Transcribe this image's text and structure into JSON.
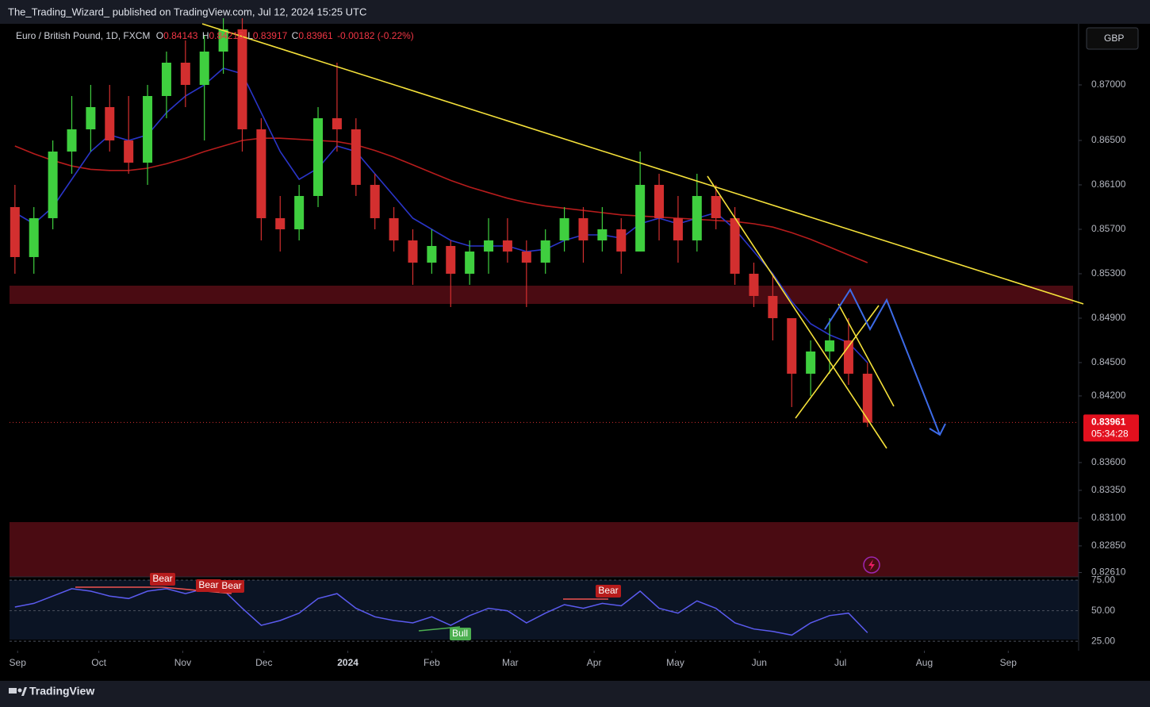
{
  "header": {
    "publisher": "The_Trading_Wizard_ published on TradingView.com, Jul 12, 2024 15:25 UTC"
  },
  "footer": {
    "brand": "TradingView"
  },
  "chart_data": {
    "type": "candlestick",
    "symbol": "Euro / British Pound, 1D, FXCM",
    "currency": "GBP",
    "legend": {
      "open_label": "O",
      "open": 0.84143,
      "high_label": "H",
      "high": 0.84216,
      "low_label": "L",
      "low": 0.83917,
      "close_label": "C",
      "close": 0.83961,
      "change": -0.00182,
      "change_pct": "(-0.22%)"
    },
    "countdown": "05:34:28",
    "up_color": "#3fcf3f",
    "down_color": "#d32f2f",
    "x": [
      -1,
      6,
      13,
      20,
      27,
      34,
      41,
      48,
      55,
      62,
      69,
      76,
      83,
      90,
      97,
      104,
      111,
      118,
      125,
      132,
      139,
      146,
      153,
      160,
      167,
      174,
      181,
      188,
      195,
      202,
      209,
      216,
      223,
      230,
      237,
      244,
      251,
      258,
      265,
      272,
      279,
      286,
      293,
      300,
      307,
      314
    ],
    "open": [
      0.859,
      0.8545,
      0.858,
      0.864,
      0.866,
      0.868,
      0.865,
      0.863,
      0.869,
      0.872,
      0.87,
      0.873,
      0.875,
      0.866,
      0.858,
      0.857,
      0.86,
      0.867,
      0.866,
      0.861,
      0.858,
      0.856,
      0.854,
      0.8555,
      0.853,
      0.855,
      0.856,
      0.855,
      0.854,
      0.856,
      0.858,
      0.856,
      0.857,
      0.855,
      0.861,
      0.858,
      0.856,
      0.86,
      0.858,
      0.853,
      0.851,
      0.849,
      0.844,
      0.846,
      0.847,
      0.844
    ],
    "high": [
      0.861,
      0.859,
      0.865,
      0.869,
      0.87,
      0.87,
      0.869,
      0.87,
      0.873,
      0.874,
      0.8745,
      0.876,
      0.876,
      0.867,
      0.86,
      0.861,
      0.868,
      0.872,
      0.867,
      0.862,
      0.859,
      0.857,
      0.857,
      0.856,
      0.856,
      0.858,
      0.858,
      0.856,
      0.857,
      0.859,
      0.859,
      0.859,
      0.858,
      0.864,
      0.862,
      0.86,
      0.862,
      0.861,
      0.859,
      0.854,
      0.853,
      0.849,
      0.847,
      0.849,
      0.849,
      0.845
    ],
    "low": [
      0.853,
      0.853,
      0.857,
      0.862,
      0.864,
      0.864,
      0.862,
      0.861,
      0.867,
      0.868,
      0.865,
      0.871,
      0.864,
      0.856,
      0.855,
      0.856,
      0.859,
      0.864,
      0.86,
      0.857,
      0.855,
      0.852,
      0.853,
      0.85,
      0.852,
      0.853,
      0.854,
      0.85,
      0.853,
      0.855,
      0.854,
      0.855,
      0.853,
      0.855,
      0.856,
      0.854,
      0.855,
      0.857,
      0.852,
      0.85,
      0.847,
      0.841,
      0.842,
      0.844,
      0.843,
      0.8392
    ],
    "close": [
      0.8545,
      0.858,
      0.864,
      0.866,
      0.868,
      0.865,
      0.863,
      0.869,
      0.872,
      0.87,
      0.873,
      0.875,
      0.866,
      0.858,
      0.857,
      0.86,
      0.867,
      0.866,
      0.861,
      0.858,
      0.856,
      0.854,
      0.8555,
      0.853,
      0.855,
      0.856,
      0.855,
      0.854,
      0.856,
      0.858,
      0.856,
      0.857,
      0.855,
      0.861,
      0.858,
      0.856,
      0.86,
      0.858,
      0.853,
      0.851,
      0.849,
      0.844,
      0.846,
      0.847,
      0.844,
      0.8396
    ],
    "moving_averages": [
      {
        "color": "#b71c1c",
        "values": [
          0.8645,
          0.8638,
          0.8632,
          0.8627,
          0.8624,
          0.8623,
          0.8623,
          0.8625,
          0.8629,
          0.8634,
          0.864,
          0.8645,
          0.865,
          0.8652,
          0.8652,
          0.8651,
          0.865,
          0.8649,
          0.8646,
          0.8641,
          0.8635,
          0.8628,
          0.8621,
          0.8614,
          0.8608,
          0.8603,
          0.8598,
          0.8594,
          0.8591,
          0.8589,
          0.8587,
          0.8585,
          0.8583,
          0.8582,
          0.8581,
          0.858,
          0.8579,
          0.8578,
          0.8577,
          0.8575,
          0.8572,
          0.8567,
          0.8561,
          0.8554,
          0.8547,
          0.854
        ]
      },
      {
        "color": "#2a35c8",
        "values": [
          0.8585,
          0.8575,
          0.859,
          0.8615,
          0.864,
          0.8655,
          0.865,
          0.8655,
          0.8675,
          0.869,
          0.87,
          0.8715,
          0.871,
          0.8675,
          0.864,
          0.8615,
          0.8625,
          0.8645,
          0.864,
          0.862,
          0.86,
          0.858,
          0.857,
          0.856,
          0.8555,
          0.8555,
          0.8555,
          0.855,
          0.8552,
          0.856,
          0.8565,
          0.8565,
          0.8562,
          0.8575,
          0.858,
          0.8575,
          0.858,
          0.8585,
          0.857,
          0.855,
          0.853,
          0.8505,
          0.8485,
          0.8475,
          0.8468,
          0.845
        ]
      }
    ],
    "xlim": [
      -3,
      392
    ],
    "xticks": [
      {
        "value": 0,
        "label": "Sep"
      },
      {
        "value": 30,
        "label": "Oct"
      },
      {
        "value": 61,
        "label": "Nov"
      },
      {
        "value": 91,
        "label": "Dec"
      },
      {
        "value": 122,
        "label": "2024"
      },
      {
        "value": 153,
        "label": "Feb"
      },
      {
        "value": 182,
        "label": "Mar"
      },
      {
        "value": 213,
        "label": "Apr"
      },
      {
        "value": 243,
        "label": "May"
      },
      {
        "value": 274,
        "label": "Jun"
      },
      {
        "value": 304,
        "label": "Jul"
      },
      {
        "value": 335,
        "label": "Aug"
      },
      {
        "value": 366,
        "label": "Sep"
      }
    ],
    "ylim": [
      0.82571,
      0.8755
    ],
    "yticks": [
      {
        "value": 0.87,
        "label": "0.87000"
      },
      {
        "value": 0.865,
        "label": "0.86500"
      },
      {
        "value": 0.861,
        "label": "0.86100"
      },
      {
        "value": 0.857,
        "label": "0.85700"
      },
      {
        "value": 0.853,
        "label": "0.85300"
      },
      {
        "value": 0.849,
        "label": "0.84900"
      },
      {
        "value": 0.845,
        "label": "0.84500"
      },
      {
        "value": 0.842,
        "label": "0.84200"
      },
      {
        "value": 0.836,
        "label": "0.83600"
      },
      {
        "value": 0.8335,
        "label": "0.83350"
      },
      {
        "value": 0.831,
        "label": "0.83100"
      },
      {
        "value": 0.8285,
        "label": "0.82850"
      },
      {
        "value": 0.8261,
        "label": "0.82610"
      }
    ],
    "rsi": {
      "color": "#5b5bf0",
      "values": [
        53,
        56,
        62,
        68,
        66,
        62,
        60,
        66,
        68,
        64,
        68,
        67,
        52,
        38,
        42,
        48,
        60,
        64,
        52,
        45,
        42,
        40,
        45,
        38,
        46,
        52,
        50,
        40,
        48,
        55,
        52,
        56,
        54,
        66,
        52,
        48,
        58,
        52,
        40,
        35,
        33,
        30,
        40,
        46,
        48,
        32
      ],
      "ylim": [
        17.3,
        77.7
      ],
      "yticks": [
        {
          "value": 75,
          "label": "75.00"
        },
        {
          "value": 50,
          "label": "50.00"
        },
        {
          "value": 25,
          "label": "25.00"
        }
      ],
      "annotations": [
        "Bear",
        "Bear",
        "Bear",
        "Bull",
        "Bear"
      ]
    }
  }
}
